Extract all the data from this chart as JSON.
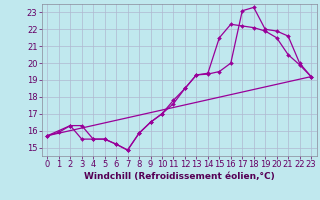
{
  "xlabel": "Windchill (Refroidissement éolien,°C)",
  "xlim": [
    -0.5,
    23.5
  ],
  "ylim": [
    14.5,
    23.5
  ],
  "xticks": [
    0,
    1,
    2,
    3,
    4,
    5,
    6,
    7,
    8,
    9,
    10,
    11,
    12,
    13,
    14,
    15,
    16,
    17,
    18,
    19,
    20,
    21,
    22,
    23
  ],
  "yticks": [
    15,
    16,
    17,
    18,
    19,
    20,
    21,
    22,
    23
  ],
  "bg_color": "#c0e8ee",
  "grid_color": "#b0b8d0",
  "line_color": "#990099",
  "line1_x": [
    0,
    1,
    2,
    3,
    4,
    5,
    6,
    7,
    8,
    9,
    10,
    11,
    12,
    13,
    14,
    15,
    16,
    17,
    18,
    19,
    20,
    21,
    22,
    23
  ],
  "line1_y": [
    15.7,
    15.9,
    16.3,
    15.5,
    15.5,
    15.5,
    15.2,
    14.85,
    15.85,
    16.5,
    17.0,
    17.6,
    18.5,
    19.3,
    19.4,
    21.5,
    22.3,
    22.2,
    22.1,
    21.9,
    21.5,
    20.5,
    19.9,
    19.2
  ],
  "line2_x": [
    0,
    2,
    3,
    4,
    5,
    6,
    7,
    8,
    9,
    10,
    11,
    12,
    13,
    14,
    15,
    16,
    17,
    18,
    19,
    20,
    21,
    22,
    23
  ],
  "line2_y": [
    15.7,
    16.3,
    16.3,
    15.5,
    15.5,
    15.2,
    14.85,
    15.85,
    16.5,
    17.0,
    17.8,
    18.5,
    19.3,
    19.35,
    19.5,
    20.0,
    23.1,
    23.3,
    22.0,
    21.9,
    21.6,
    20.0,
    19.2
  ],
  "line3_x": [
    0,
    23
  ],
  "line3_y": [
    15.7,
    19.2
  ],
  "xlabel_fontsize": 6.5,
  "tick_fontsize": 6
}
